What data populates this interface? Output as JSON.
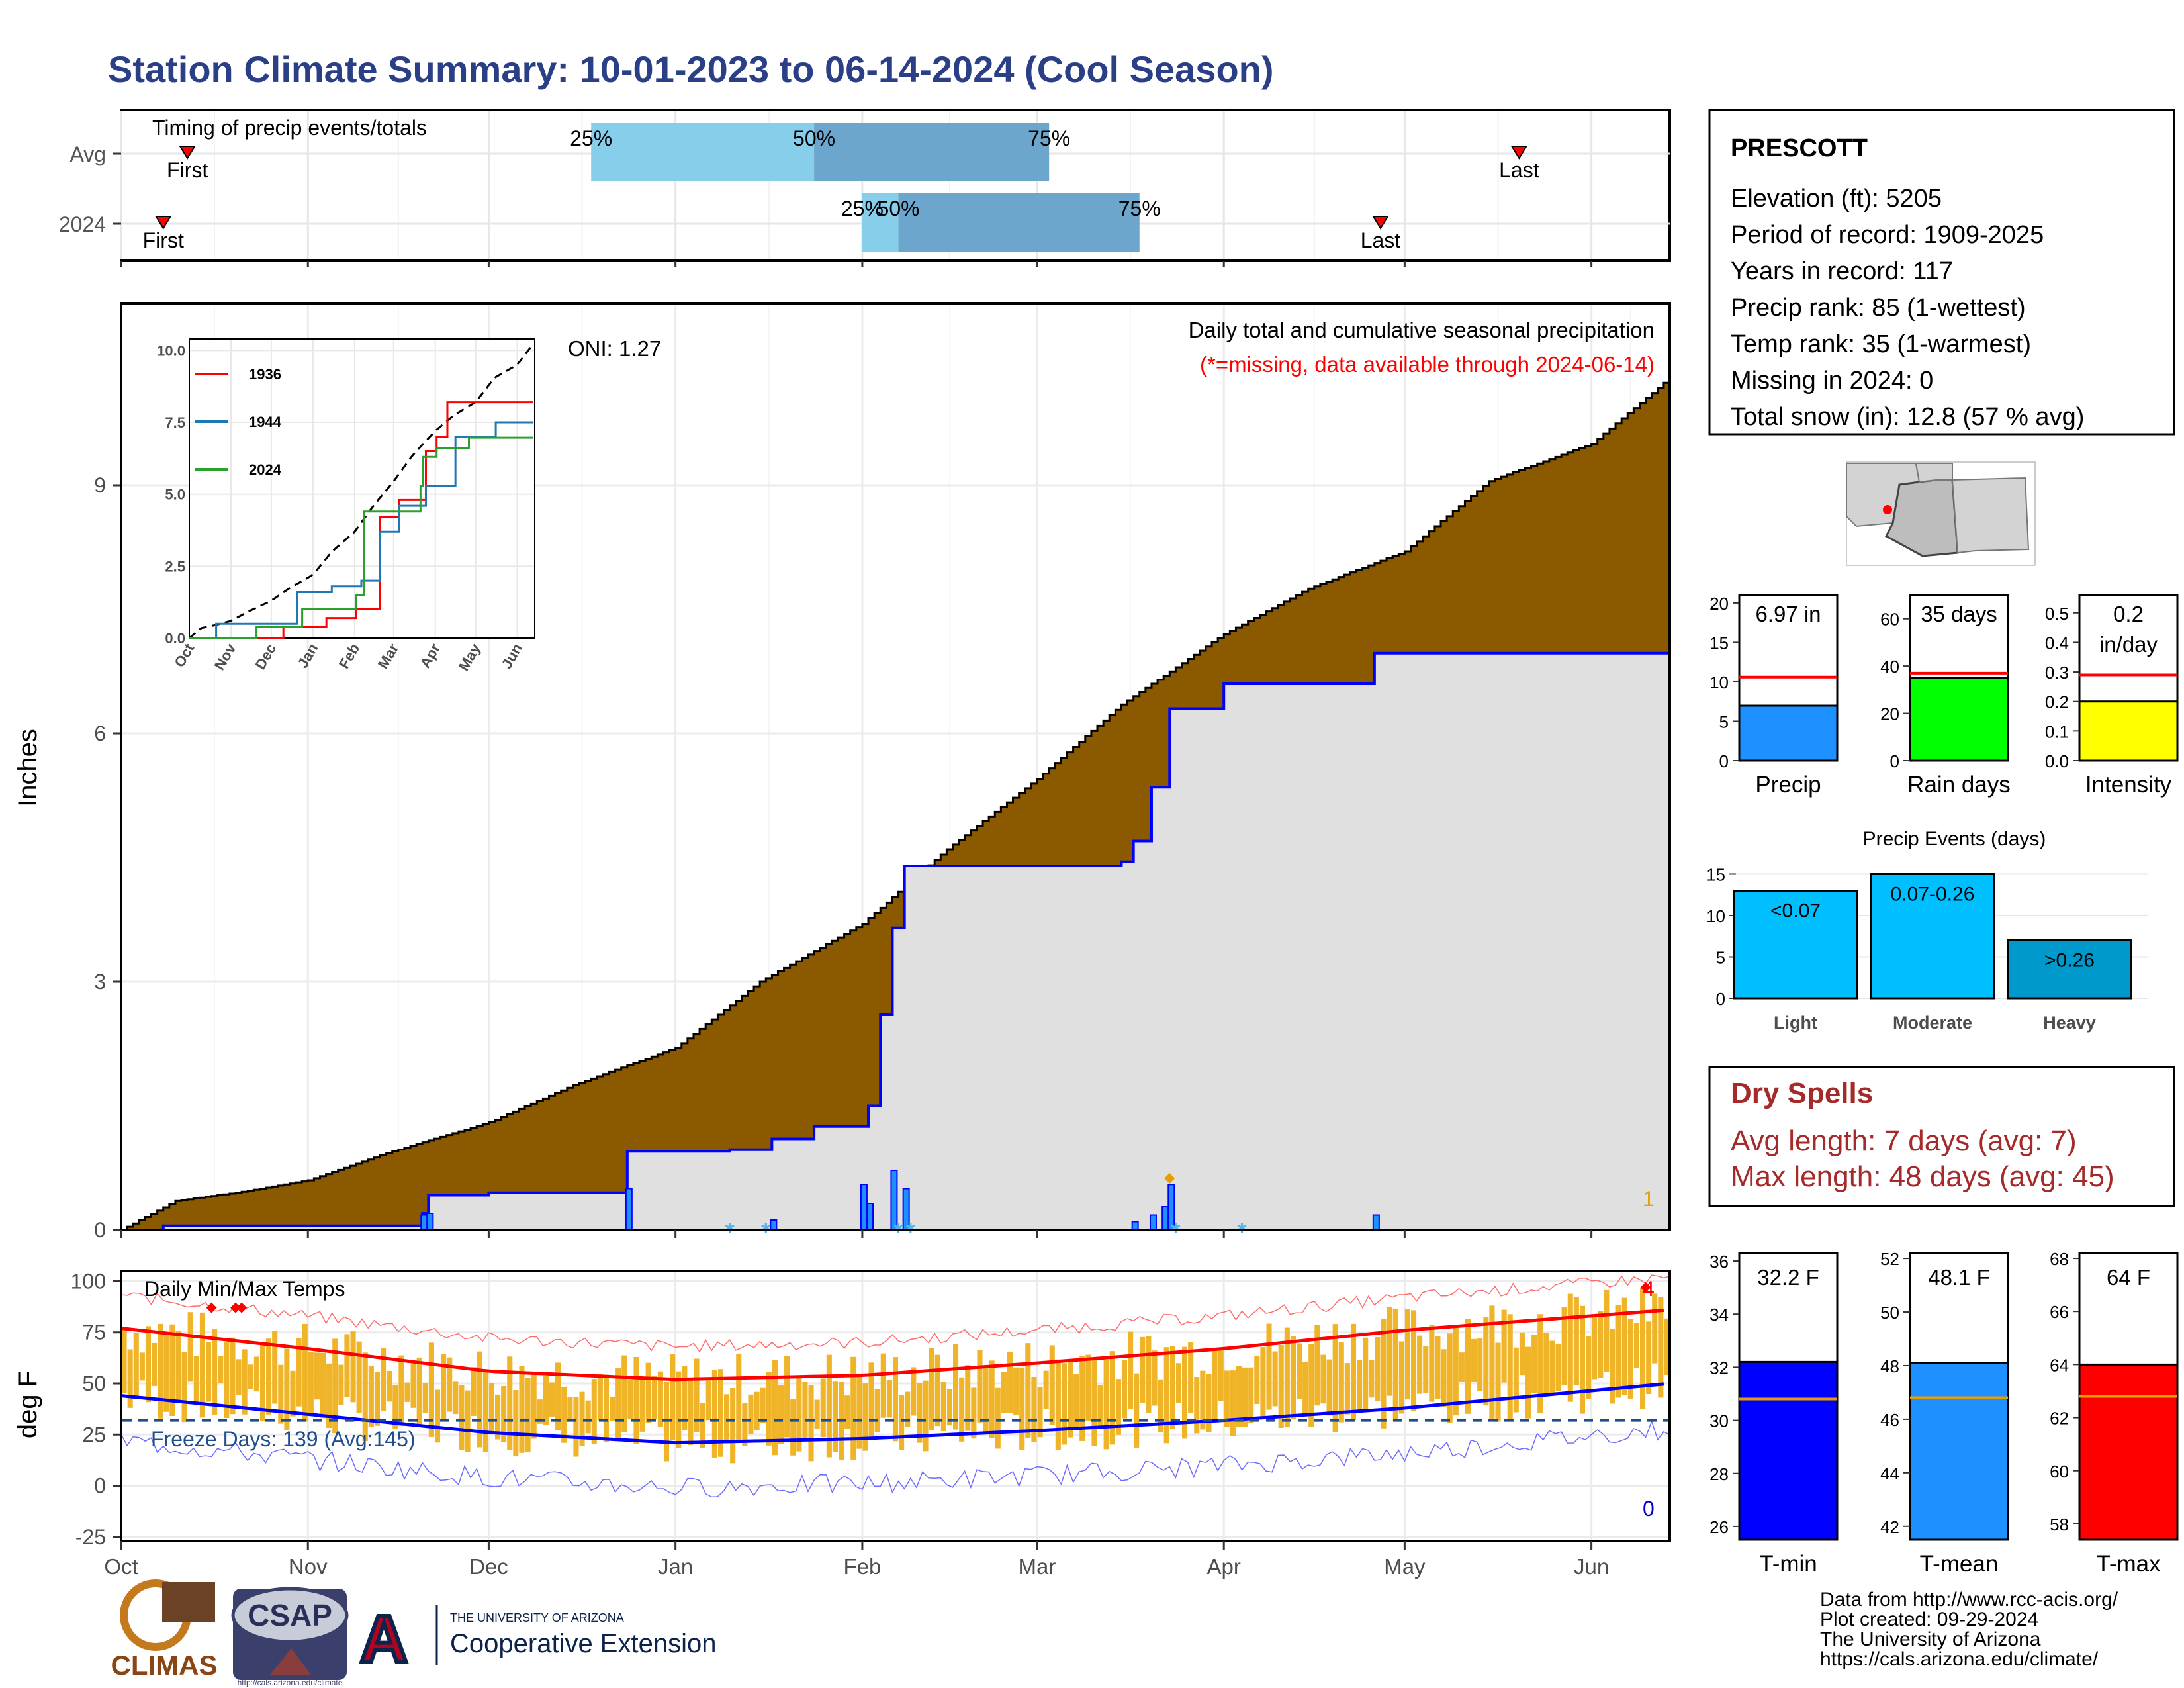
{
  "title": "Station Climate Summary: 10-01-2023 to 06-14-2024 (Cool Season)",
  "colors": {
    "title": "#2a3f85",
    "brown": "#8b5a00",
    "precip": "#1e90ff",
    "rain": "#00ff00",
    "intensity": "#ffff00",
    "tmin": "#0000ff",
    "tmean": "#1e90ff",
    "tmax": "#ff0000",
    "light": "#00bfff",
    "heavy": "#0099cc",
    "q_light": "#87ceeb",
    "q_dark": "#6ca6cd",
    "dry": "#a52a2a",
    "bars": "#f0b429"
  },
  "months": [
    "Oct",
    "Nov",
    "Dec",
    "Jan",
    "Feb",
    "Mar",
    "Apr",
    "May",
    "Jun"
  ],
  "timing": {
    "label": "Timing of precip events/totals",
    "rows": [
      "Avg",
      "2024"
    ],
    "first_label": "First",
    "last_label": "Last",
    "avg": {
      "first": "2023-10-12",
      "last": "2024-05-20",
      "q25": "2023-12-18",
      "q50": "2024-01-24",
      "q75": "2024-03-03"
    },
    "y2024": {
      "first": "2023-10-08",
      "last": "2024-04-27",
      "q25": "2024-02-01",
      "q50": "2024-02-07",
      "q75": "2024-03-18"
    },
    "q_labels": [
      "25%",
      "50%",
      "75%"
    ]
  },
  "precip_panel": {
    "ylabel": "Inches",
    "y_ticks": [
      0,
      3,
      6,
      9
    ],
    "ylim": [
      0,
      11.2
    ],
    "legend_title": "Daily total and cumulative seasonal precipitation",
    "missing_note": "(*=missing, data available through 2024-06-14)",
    "oni": "ONI: 1.27",
    "corner_count": "1"
  },
  "inset": {
    "y_ticks": [
      "0.0",
      "2.5",
      "5.0",
      "7.5",
      "10.0"
    ],
    "x_labels": [
      "Oct",
      "Nov",
      "Dec",
      "Jan",
      "Feb",
      "Mar",
      "Apr",
      "May",
      "Jun"
    ],
    "legend": [
      "1936",
      "1944",
      "2024"
    ],
    "series_colors": [
      "#ff0000",
      "#1f77b4",
      "#2ca02c"
    ]
  },
  "station": {
    "name": "PRESCOTT",
    "elevation": "Elevation (ft): 5205",
    "period": "Period of record: 1909-2025",
    "years": "Years in record: 117",
    "precip_rank": "Precip rank: 85 (1-wettest)",
    "temp_rank": "Temp rank: 35 (1-warmest)",
    "missing": "Missing in 2024: 0",
    "snow": "Total snow (in): 12.8 (57 % avg)"
  },
  "summary_bars": [
    {
      "label": "Precip",
      "value_text": "6.97 in",
      "value": 6.97,
      "avg": 10.6,
      "ylim": [
        0,
        21
      ],
      "ticks": [
        0,
        5,
        10,
        15,
        20
      ],
      "color": "#1e90ff"
    },
    {
      "label": "Rain days",
      "value_text": "35 days",
      "value": 35,
      "avg": 37,
      "ylim": [
        0,
        70
      ],
      "ticks": [
        0,
        20,
        40,
        60
      ],
      "color": "#00ff00"
    },
    {
      "label": "Intensity",
      "value_text": "0.2",
      "value_text2": "in/day",
      "value": 0.2,
      "avg": 0.29,
      "ylim": [
        0,
        0.56
      ],
      "ticks": [
        "0.0",
        "0.1",
        "0.2",
        "0.3",
        "0.4",
        "0.5"
      ],
      "color": "#ffff00"
    }
  ],
  "events": {
    "title": "Precip Events (days)",
    "categories": [
      "Light",
      "Moderate",
      "Heavy"
    ],
    "range_labels": [
      "<0.07",
      "0.07-0.26",
      ">0.26"
    ],
    "values": [
      13,
      15,
      7
    ],
    "ticks": [
      0,
      5,
      10,
      15
    ],
    "ylim": [
      0,
      16
    ]
  },
  "dry_spells": {
    "title": "Dry Spells",
    "avg": "Avg length: 7 days (avg: 7)",
    "max": "Max length: 48 days (avg: 45)"
  },
  "temp_panel": {
    "title": "Daily Min/Max Temps",
    "ylabel": "deg F",
    "y_ticks": [
      -25,
      0,
      25,
      50,
      75,
      100
    ],
    "ylim": [
      -27,
      105
    ],
    "freeze": "Freeze Days: 139 (Avg:145)",
    "record_high_count": "4",
    "record_low_count": "0"
  },
  "temp_bars": [
    {
      "label": "T-min",
      "value_text": "32.2 F",
      "value": 32.2,
      "avg": 30.8,
      "ylim": [
        25.5,
        36.3
      ],
      "ticks": [
        26,
        28,
        30,
        32,
        34,
        36
      ],
      "color": "#0000ff"
    },
    {
      "label": "T-mean",
      "value_text": "48.1 F",
      "value": 48.1,
      "avg": 46.8,
      "ylim": [
        41.5,
        52.2
      ],
      "ticks": [
        42,
        44,
        46,
        48,
        50,
        52
      ],
      "color": "#1e90ff"
    },
    {
      "label": "T-max",
      "value_text": "64 F",
      "value": 64,
      "avg": 62.8,
      "ylim": [
        57.4,
        68.2
      ],
      "ticks": [
        58,
        60,
        62,
        64,
        66,
        68
      ],
      "color": "#ff0000"
    }
  ],
  "footer": {
    "line1": "Data from http://www.rcc-acis.org/",
    "line2": "Plot created: 09-29-2024",
    "line3": "The University of Arizona",
    "line4": "https://cals.arizona.edu/climate/"
  },
  "logos": {
    "climas": "CLIMAS",
    "csap": "CSAP",
    "csap_url": "http://cals.arizona.edu/climate",
    "ua_small": "THE UNIVERSITY OF ARIZONA",
    "ua_big": "Cooperative Extension"
  },
  "chart_data": [
    {
      "type": "area",
      "title": "Daily total and cumulative seasonal precipitation",
      "ylabel": "Inches",
      "ylim": [
        0,
        11.2
      ],
      "series": [
        {
          "name": "",
          "points": [
            [
              "2023-10-01",
              0.0
            ],
            [
              "2023-10-10",
              0.35
            ],
            [
              "2023-10-20",
              0.45
            ],
            [
              "2023-11-01",
              0.6
            ],
            [
              "2023-11-15",
              0.95
            ],
            [
              "2023-12-01",
              1.3
            ],
            [
              "2023-12-15",
              1.75
            ],
            [
              "2024-01-01",
              2.2
            ],
            [
              "2024-01-15",
              3.0
            ],
            [
              "2024-02-01",
              3.7
            ],
            [
              "2024-02-15",
              4.6
            ],
            [
              "2024-03-01",
              5.45
            ],
            [
              "2024-03-15",
              6.35
            ],
            [
              "2024-04-01",
              7.2
            ],
            [
              "2024-04-15",
              7.75
            ],
            [
              "2024-05-01",
              8.2
            ],
            [
              "2024-05-15",
              9.05
            ],
            [
              "2024-06-01",
              9.5
            ],
            [
              "2024-06-14",
              10.3
            ]
          ]
        },
        {
          "name": "",
          "points": [
            [
              "2023-10-01",
              0.0
            ],
            [
              "2023-10-08",
              0.05
            ],
            [
              "2023-11-20",
              0.2
            ],
            [
              "2023-11-21",
              0.42
            ],
            [
              "2023-12-01",
              0.45
            ],
            [
              "2023-12-23",
              0.45
            ],
            [
              "2023-12-24",
              0.95
            ],
            [
              "2024-01-10",
              0.97
            ],
            [
              "2024-01-17",
              1.1
            ],
            [
              "2024-01-24",
              1.25
            ],
            [
              "2024-02-02",
              1.5
            ],
            [
              "2024-02-04",
              2.6
            ],
            [
              "2024-02-06",
              3.65
            ],
            [
              "2024-02-08",
              4.4
            ],
            [
              "2024-03-15",
              4.45
            ],
            [
              "2024-03-17",
              4.7
            ],
            [
              "2024-03-20",
              5.35
            ],
            [
              "2024-03-23",
              6.3
            ],
            [
              "2024-04-01",
              6.6
            ],
            [
              "2024-04-25",
              6.6
            ],
            [
              "2024-04-26",
              6.97
            ],
            [
              "2024-06-14",
              6.97
            ]
          ]
        }
      ],
      "daily": [
        [
          "2023-11-20",
          0.18
        ],
        [
          "2023-11-21",
          0.2
        ],
        [
          "2023-12-24",
          0.5
        ],
        [
          "2024-01-17",
          0.12
        ],
        [
          "2024-02-01",
          0.55
        ],
        [
          "2024-02-02",
          0.32
        ],
        [
          "2024-02-06",
          0.72
        ],
        [
          "2024-02-08",
          0.5
        ],
        [
          "2024-03-17",
          0.1
        ],
        [
          "2024-03-20",
          0.18
        ],
        [
          "2024-03-22",
          0.28
        ],
        [
          "2024-03-23",
          0.55
        ],
        [
          "2024-04-26",
          0.18
        ]
      ]
    },
    {
      "type": "line",
      "title": "Daily Min/Max Temps",
      "ylabel": "deg F",
      "ylim": [
        -27,
        105
      ],
      "series": [
        {
          "name": "",
          "points": [
            [
              "2023-10-01",
              77
            ],
            [
              "2023-11-01",
              67
            ],
            [
              "2023-12-01",
              56
            ],
            [
              "2024-01-01",
              52
            ],
            [
              "2024-02-01",
              54
            ],
            [
              "2024-03-01",
              60
            ],
            [
              "2024-04-01",
              67
            ],
            [
              "2024-05-01",
              76
            ],
            [
              "2024-06-14",
              86
            ]
          ]
        },
        {
          "name": "",
          "points": [
            [
              "2023-10-01",
              44
            ],
            [
              "2023-11-01",
              35
            ],
            [
              "2023-12-01",
              26
            ],
            [
              "2024-01-01",
              21
            ],
            [
              "2024-02-01",
              23
            ],
            [
              "2024-03-01",
              27
            ],
            [
              "2024-04-01",
              32
            ],
            [
              "2024-05-01",
              38
            ],
            [
              "2024-06-14",
              50
            ]
          ]
        }
      ]
    }
  ]
}
